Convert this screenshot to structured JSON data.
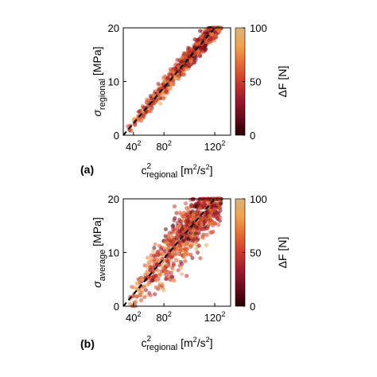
{
  "chart_data": [
    {
      "panel_label": "(a)",
      "type": "scatter",
      "xlabel": {
        "main": "c",
        "sup": "2",
        "sub": "regional",
        "unit": "[m",
        "unit_sup": "2",
        "unit_mid": "/s",
        "unit_sup2": "2",
        "unit_end": "]"
      },
      "ylabel": {
        "symbol": "σ",
        "sub": "regional",
        "unit": "[MPa]"
      },
      "x_ticks": [
        {
          "base": "40",
          "sup": "2",
          "value": 1600
        },
        {
          "base": "80",
          "sup": "2",
          "value": 6400
        },
        {
          "base": "120",
          "sup": "2",
          "value": 14400
        }
      ],
      "xlim": [
        0,
        16900
      ],
      "ylim": [
        0,
        20
      ],
      "y_ticks": [
        "0",
        "10",
        "20"
      ],
      "spread": 0.9,
      "fit_line": {
        "style": "dashed",
        "color": "#000000",
        "x": [
          0,
          14400
        ],
        "y": [
          0,
          20
        ]
      },
      "colorbar": {
        "label": "ΔF [N]",
        "range": [
          0,
          100
        ],
        "ticks": [
          "0",
          "50",
          "100"
        ]
      }
    },
    {
      "panel_label": "(b)",
      "type": "scatter",
      "xlabel": {
        "main": "c",
        "sup": "2",
        "sub": "regional",
        "unit": "[m",
        "unit_sup": "2",
        "unit_mid": "/s",
        "unit_sup2": "2",
        "unit_end": "]"
      },
      "ylabel": {
        "symbol": "σ",
        "sub": "average",
        "unit": "[MPa]"
      },
      "x_ticks": [
        {
          "base": "40",
          "sup": "2",
          "value": 1600
        },
        {
          "base": "80",
          "sup": "2",
          "value": 6400
        },
        {
          "base": "120",
          "sup": "2",
          "value": 14400
        }
      ],
      "xlim": [
        0,
        16900
      ],
      "ylim": [
        0,
        20
      ],
      "y_ticks": [
        "0",
        "10",
        "20"
      ],
      "spread": 2.6,
      "fit_line": {
        "style": "dashed",
        "color": "#000000",
        "x": [
          0,
          14400
        ],
        "y": [
          0,
          20
        ]
      },
      "colorbar": {
        "label": "ΔF [N]",
        "range": [
          0,
          100
        ],
        "ticks": [
          "0",
          "50",
          "100"
        ]
      }
    }
  ],
  "colormap": [
    "#2a0000",
    "#6a0a1a",
    "#a0182e",
    "#cd3a2c",
    "#e86a32",
    "#f4a14c",
    "#d8b27a"
  ]
}
